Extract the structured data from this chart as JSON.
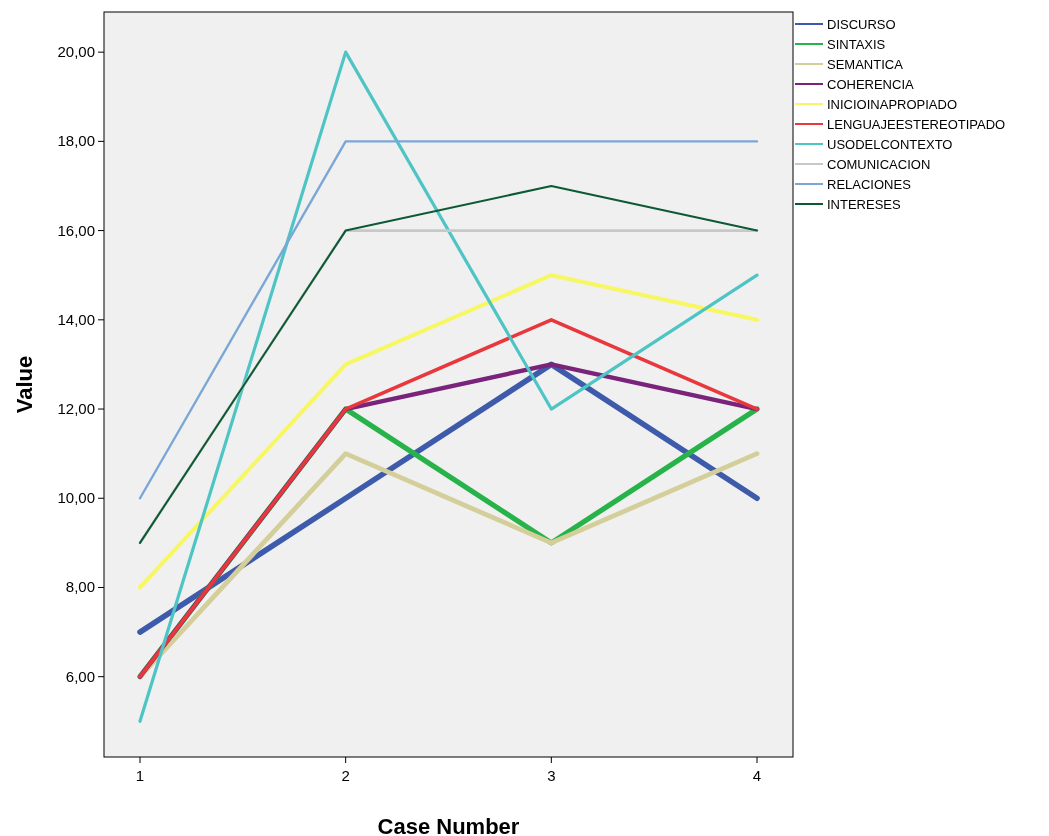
{
  "chart_data": {
    "type": "line",
    "xlabel": "Case Number",
    "ylabel": "Value",
    "x": [
      1,
      2,
      3,
      4
    ],
    "xlim": [
      0.825,
      4.175
    ],
    "xticks": [
      1,
      2,
      3,
      4
    ],
    "ylim": [
      4.2,
      20.9
    ],
    "yticks": [
      {
        "value": 6,
        "label": "6,00"
      },
      {
        "value": 8,
        "label": "8,00"
      },
      {
        "value": 10,
        "label": "10,00"
      },
      {
        "value": 12,
        "label": "12,00"
      },
      {
        "value": 14,
        "label": "14,00"
      },
      {
        "value": 16,
        "label": "16,00"
      },
      {
        "value": 18,
        "label": "18,00"
      },
      {
        "value": 20,
        "label": "20,00"
      }
    ],
    "grid": false,
    "legend": "top right",
    "marker": "none",
    "line_style": "solid",
    "series": [
      {
        "name": "DISCURSO",
        "color": "#3e5bab",
        "values": [
          7,
          10,
          13,
          10
        ]
      },
      {
        "name": "SINTAXIS",
        "color": "#27b34a",
        "values": [
          6,
          12,
          9,
          12
        ]
      },
      {
        "name": "SEMANTICA",
        "color": "#d4cf9a",
        "values": [
          6,
          11,
          9,
          11
        ]
      },
      {
        "name": "COHERENCIA",
        "color": "#7a237a",
        "values": [
          6,
          12,
          13,
          12
        ]
      },
      {
        "name": "INICIOINAPROPIADO",
        "color": "#f7f763",
        "values": [
          8,
          13,
          15,
          14
        ]
      },
      {
        "name": "LENGUAJEESTEREOTIPADO",
        "color": "#e8383d",
        "values": [
          6,
          12,
          14,
          12
        ]
      },
      {
        "name": "USODELCONTEXTO",
        "color": "#4ec4c4",
        "values": [
          5,
          20,
          12,
          15
        ]
      },
      {
        "name": "COMUNICACION",
        "color": "#c8c8c8",
        "values": [
          9,
          16,
          16,
          16
        ]
      },
      {
        "name": "RELACIONES",
        "color": "#7ba7d6",
        "values": [
          10,
          18,
          18,
          18
        ]
      },
      {
        "name": "INTERESES",
        "color": "#0b5a34",
        "values": [
          9,
          16,
          17,
          16
        ]
      }
    ]
  }
}
